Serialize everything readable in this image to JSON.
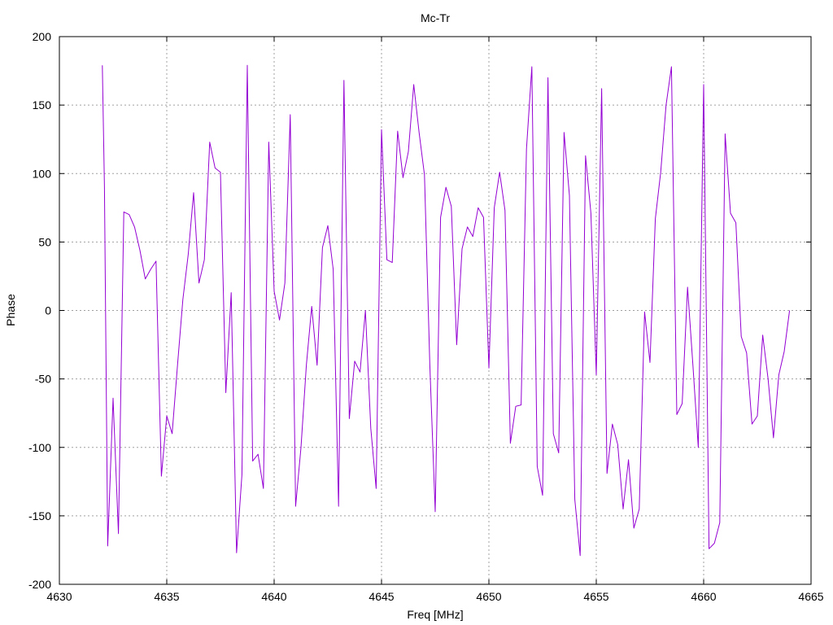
{
  "chart_data": {
    "type": "line",
    "title": "Mc-Tr",
    "xlabel": "Freq [MHz]",
    "ylabel": "Phase",
    "xlim": [
      4630,
      4665
    ],
    "ylim": [
      -200,
      200
    ],
    "xticks": [
      4630,
      4635,
      4640,
      4645,
      4650,
      4655,
      4660,
      4665
    ],
    "yticks": [
      -200,
      -150,
      -100,
      -50,
      0,
      50,
      100,
      150,
      200
    ],
    "grid": true,
    "color": "#9400d3",
    "series": [
      {
        "x": [
          4632.0,
          4632.1,
          4632.25,
          4632.5,
          4632.75,
          4633.0,
          4633.25,
          4633.5,
          4633.75,
          4634.0,
          4634.25,
          4634.5,
          4634.75,
          4635.0,
          4635.25,
          4635.5,
          4635.75,
          4636.0,
          4636.25,
          4636.5,
          4636.75,
          4637.0,
          4637.25,
          4637.5,
          4637.75,
          4638.0,
          4638.25,
          4638.5,
          4638.75,
          4639.0,
          4639.25,
          4639.5,
          4639.75,
          4640.0,
          4640.25,
          4640.5,
          4640.75,
          4641.0,
          4641.25,
          4641.5,
          4641.75,
          4642.0,
          4642.25,
          4642.5,
          4642.75,
          4643.0,
          4643.25,
          4643.5,
          4643.75,
          4644.0,
          4644.25,
          4644.5,
          4644.75,
          4645.0,
          4645.25,
          4645.5,
          4645.75,
          4646.0,
          4646.25,
          4646.5,
          4646.75,
          4647.0,
          4647.25,
          4647.5,
          4647.75,
          4648.0,
          4648.25,
          4648.5,
          4648.75,
          4649.0,
          4649.25,
          4649.5,
          4649.75,
          4650.0,
          4650.25,
          4650.5,
          4650.75,
          4651.0,
          4651.25,
          4651.5,
          4651.75,
          4652.0,
          4652.25,
          4652.5,
          4652.75,
          4653.0,
          4653.25,
          4653.5,
          4653.75,
          4654.0,
          4654.25,
          4654.5,
          4654.75,
          4655.0,
          4655.25,
          4655.5,
          4655.75,
          4656.0,
          4656.25,
          4656.5,
          4656.75,
          4657.0,
          4657.25,
          4657.5,
          4657.75,
          4658.0,
          4658.25,
          4658.5,
          4658.75,
          4659.0,
          4659.25,
          4659.5,
          4659.75,
          4660.0,
          4660.25,
          4660.5,
          4660.75,
          4661.0,
          4661.25,
          4661.5,
          4661.75,
          4662.0,
          4662.25,
          4662.5,
          4662.75,
          4663.0,
          4663.25,
          4663.5,
          4663.75,
          4664.0
        ],
        "y": [
          179,
          90,
          -172,
          -64,
          -163,
          72,
          70,
          61,
          44,
          23,
          30,
          36,
          -121,
          -77,
          -90,
          -40,
          8,
          41,
          86,
          20,
          37,
          123,
          104,
          101,
          -60,
          13,
          -177,
          -120,
          179,
          -110,
          -105,
          -130,
          123,
          14,
          -7,
          20,
          143,
          -143,
          -100,
          -40,
          3,
          -40,
          46,
          62,
          30,
          -143,
          168,
          -79,
          -37,
          -45,
          0,
          -86,
          -130,
          132,
          37,
          35,
          131,
          97,
          116,
          165,
          130,
          99,
          -40,
          -147,
          68,
          90,
          76,
          -25,
          45,
          61,
          54,
          75,
          68,
          -42,
          75,
          101,
          73,
          -97,
          -70,
          -69,
          118,
          178,
          -114,
          -135,
          170,
          -90,
          -104,
          130,
          84,
          -138,
          -179,
          113,
          71,
          -47,
          162,
          -119,
          -83,
          -98,
          -145,
          -109,
          -159,
          -145,
          -1,
          -38,
          67,
          101,
          150,
          178,
          -76,
          -68,
          17,
          -40,
          -100,
          165,
          -174,
          -170,
          -155,
          129,
          71,
          64,
          -19,
          -31,
          -83,
          -77,
          -18,
          -50,
          -93,
          -47,
          -30,
          0
        ]
      }
    ]
  }
}
